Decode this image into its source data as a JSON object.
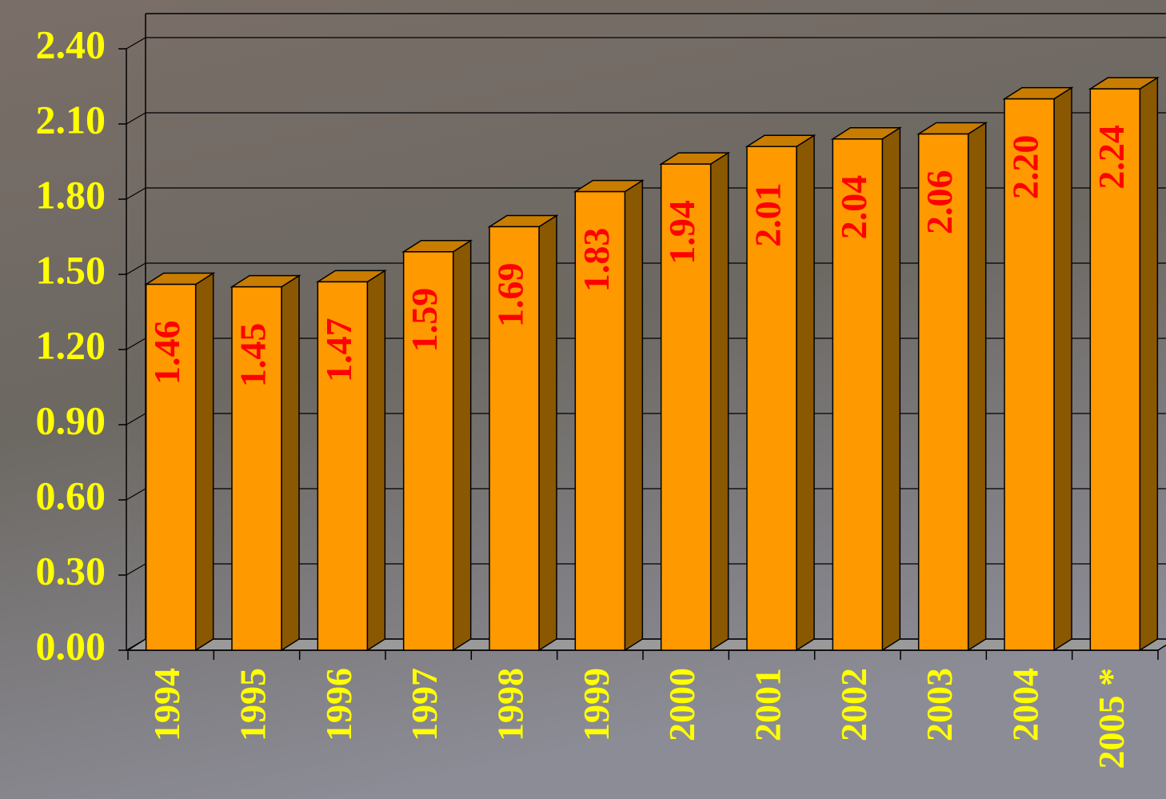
{
  "chart_data": {
    "type": "bar3d",
    "categories": [
      "1994",
      "1995",
      "1996",
      "1997",
      "1998",
      "1999",
      "2000",
      "2001",
      "2002",
      "2003",
      "2004",
      "2005 *"
    ],
    "values": [
      1.46,
      1.45,
      1.47,
      1.59,
      1.69,
      1.83,
      1.94,
      2.01,
      2.04,
      2.06,
      2.2,
      2.24
    ],
    "value_labels": [
      "1.46",
      "1.45",
      "1.47",
      "1.59",
      "1.69",
      "1.83",
      "1.94",
      "2.01",
      "2.04",
      "2.06",
      "2.20",
      "2.24"
    ],
    "color": "#ff9900",
    "ylim": [
      0,
      2.4
    ],
    "yticks": [
      {
        "value": 0,
        "label": "0.00"
      },
      {
        "value": 0.3,
        "label": "0.30"
      },
      {
        "value": 0.6,
        "label": "0.60"
      },
      {
        "value": 0.9,
        "label": "0.90"
      },
      {
        "value": 1.2,
        "label": "1.20"
      },
      {
        "value": 1.5,
        "label": "1.50"
      },
      {
        "value": 1.8,
        "label": "1.80"
      },
      {
        "value": 2.1,
        "label": "2.10"
      },
      {
        "value": 2.4,
        "label": "2.40"
      }
    ],
    "grid": true
  }
}
